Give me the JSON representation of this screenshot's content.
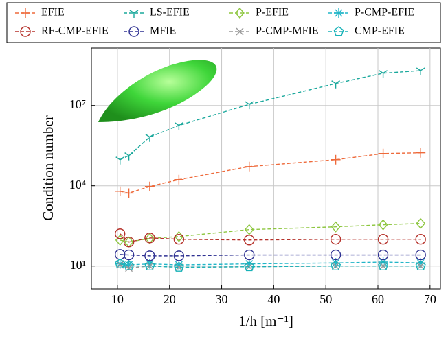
{
  "chart_data": {
    "type": "line",
    "x_label": "1/h [m⁻¹]",
    "y_label": "Condition number",
    "y_scale": "log",
    "grid": true,
    "legend": "top",
    "xlim": [
      5,
      72
    ],
    "xticks": [
      10,
      20,
      30,
      40,
      50,
      60,
      70
    ],
    "ylim": [
      1.4,
      1400000000
    ],
    "yticks": [
      {
        "value": 10,
        "label": "10¹"
      },
      {
        "value": 10000,
        "label": "10⁴"
      },
      {
        "value": 10000000,
        "label": "10⁷"
      }
    ],
    "x": [
      10.5,
      12.2,
      16.2,
      21.8,
      35.3,
      51.9,
      61,
      68.2
    ],
    "series": [
      {
        "name": "EFIE",
        "color": "#ee6a3b",
        "marker": "plus",
        "values": [
          6200,
          5300,
          9400,
          17000,
          52000,
          94000,
          160000,
          170000
        ]
      },
      {
        "name": "LS-EFIE",
        "color": "#1aa89c",
        "marker": "tri",
        "values": [
          94000,
          135000,
          660000,
          1800000,
          11000000,
          66000000,
          160000000,
          200000000
        ]
      },
      {
        "name": "P-EFIE",
        "color": "#8dc63f",
        "marker": "diamond",
        "values": [
          93,
          79,
          107,
          126,
          229,
          290,
          347,
          389
        ]
      },
      {
        "name": "P-CMP-EFIE",
        "color": "#20b5c8",
        "marker": "asterisk",
        "values": [
          12,
          11,
          12,
          11,
          12,
          13,
          14,
          13
        ]
      },
      {
        "name": "RF-CMP-EFIE",
        "color": "#b5312a",
        "marker": "circle",
        "values": [
          160,
          79,
          112,
          100,
          94,
          100,
          100,
          100
        ]
      },
      {
        "name": "MFIE",
        "color": "#2e3192",
        "marker": "circle",
        "values": [
          27,
          26,
          24,
          24,
          26,
          26,
          26,
          26
        ]
      },
      {
        "name": "P-CMP-MFIE",
        "color": "#999999",
        "marker": "cross",
        "values": [
          11,
          8.4,
          10,
          9,
          9.4,
          10,
          10,
          10
        ]
      },
      {
        "name": "CMP-EFIE",
        "color": "#18b2b8",
        "marker": "pentagon",
        "values": [
          12,
          10,
          10,
          9,
          9.4,
          10,
          10,
          10
        ]
      }
    ]
  }
}
